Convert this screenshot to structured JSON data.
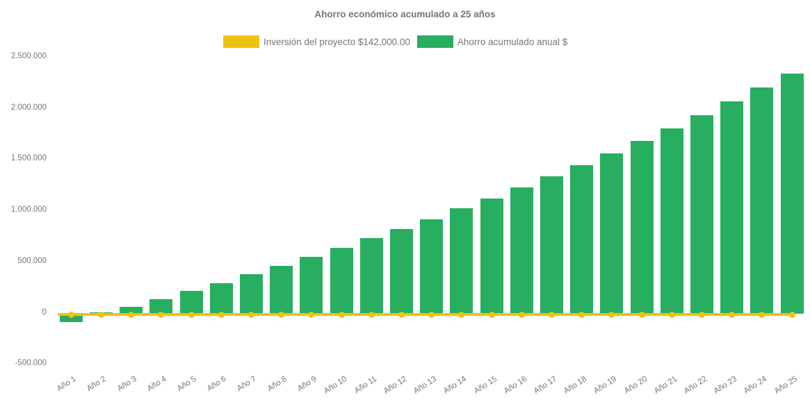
{
  "colors": {
    "bar_green": "#27AE60",
    "line_yellow": "#EEC213",
    "text_gray": "#757575",
    "background": "#FFFFFF"
  },
  "y_axis": {
    "tick_labels": [
      "2.500.000",
      "2.000.000",
      "1.500.000",
      "1.000.000",
      "500.000",
      "0",
      "-500.000"
    ],
    "tick_values": [
      2500000,
      2000000,
      1500000,
      1000000,
      500000,
      0,
      -500000
    ]
  },
  "chart_data": {
    "type": "bar",
    "title": "Ahorro económico acumulado a 25 años",
    "categories": [
      "Año 1",
      "Año 2",
      "Año 3",
      "Año 4",
      "Año 5",
      "Año 6",
      "Año 7",
      "Año 8",
      "Año 9",
      "Año 10",
      "Año 11",
      "Año 12",
      "Año 13",
      "Año 14",
      "Año 15",
      "Año 16",
      "Año 17",
      "Año 18",
      "Año 19",
      "Año 20",
      "Año 21",
      "Año 22",
      "Año 23",
      "Año 24",
      "Año 25"
    ],
    "series": [
      {
        "name": "Ahorro acumulado anual $",
        "type": "bar",
        "color": "#27AE60",
        "values": [
          -85000,
          0,
          55000,
          130000,
          210000,
          285000,
          375000,
          455000,
          540000,
          630000,
          725000,
          815000,
          910000,
          1015000,
          1115000,
          1220000,
          1330000,
          1440000,
          1555000,
          1675000,
          1800000,
          1930000,
          2060000,
          2200000,
          2335000
        ]
      },
      {
        "name": "Inversión del proyecto $142,000.00",
        "type": "line",
        "color": "#EEC213",
        "investment_label_value": "$142,000.00",
        "values": [
          0,
          0,
          0,
          0,
          0,
          0,
          0,
          0,
          0,
          0,
          0,
          0,
          0,
          0,
          0,
          0,
          0,
          0,
          0,
          0,
          0,
          0,
          0,
          0,
          0
        ]
      }
    ],
    "ylim": [
      -500000,
      2500000
    ],
    "grid": false,
    "legend_position": "top"
  }
}
